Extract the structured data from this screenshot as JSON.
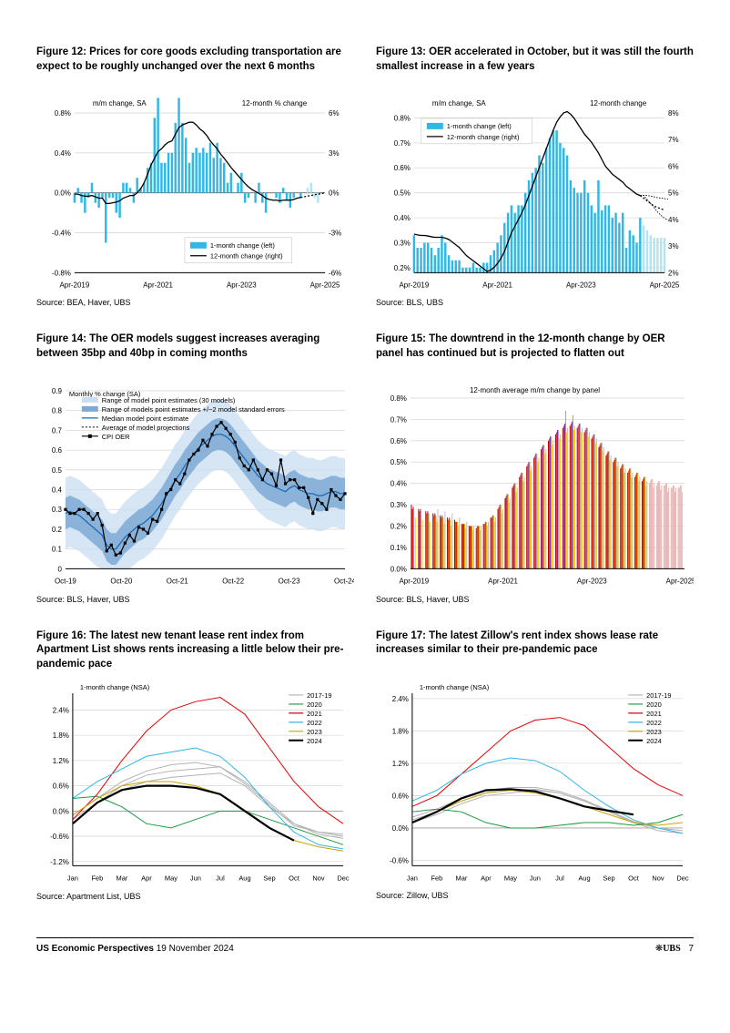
{
  "footer": {
    "title": "US Economic Perspectives",
    "date": "19 November 2024",
    "logo": "UBS",
    "page": "7",
    "keys_prefix": "❋"
  },
  "fig12": {
    "title": "Figure 12: Prices for core goods excluding transportation are expect to be roughly unchanged over the next 6 months",
    "source": "Source: BEA, Haver, UBS",
    "left_title": "m/m change, SA",
    "right_title": "12-month % change",
    "legend1": "1-month change (left)",
    "legend2": "12-month change (right)",
    "x_labels": [
      "Apr-2019",
      "Apr-2021",
      "Apr-2023",
      "Apr-2025"
    ],
    "y_left_ticks": [
      "-0.8%",
      "-0.4%",
      "0.0%",
      "0.4%",
      "0.8%"
    ],
    "y_right_ticks": [
      "-6%",
      "-3%",
      "0%",
      "3%",
      "6%"
    ],
    "bar_color": "#2eb8e6",
    "bar_fade_color": "#b3e4f2",
    "line_color": "#000000",
    "grid_color": "#d9d9d9",
    "bars": [
      -0.1,
      0.05,
      -0.1,
      -0.2,
      -0.05,
      0.1,
      -0.1,
      -0.15,
      -0.05,
      -0.5,
      -0.05,
      -0.05,
      -0.2,
      -0.25,
      0.1,
      0.1,
      0.05,
      -0.1,
      0.15,
      0.05,
      0.1,
      0.25,
      0.3,
      0.75,
      0.95,
      0.3,
      0.3,
      0.4,
      0.4,
      0.7,
      0.95,
      0.7,
      0.55,
      0.3,
      0.4,
      0.45,
      0.4,
      0.45,
      0.4,
      0.5,
      0.35,
      0.5,
      0.35,
      0.3,
      0.1,
      0.2,
      0.0,
      0.1,
      0.2,
      -0.1,
      -0.05,
      0.0,
      -0.1,
      0.1,
      -0.1,
      -0.2,
      0.0,
      0.0,
      -0.05,
      -0.1,
      0.05,
      -0.08,
      -0.15,
      -0.05,
      0.0,
      -0.05,
      0.0,
      0.05,
      0.1,
      -0.05,
      -0.1,
      0.0,
      0.0
    ],
    "bars_fade_from": 66,
    "line12": [
      -0.1,
      -0.1,
      -0.2,
      -0.25,
      -0.25,
      -0.2,
      -0.3,
      -0.4,
      -0.4,
      -0.8,
      -0.8,
      -0.75,
      -0.7,
      -0.6,
      -0.4,
      -0.3,
      -0.2,
      -0.2,
      0.0,
      0.3,
      0.75,
      1.4,
      2.1,
      2.6,
      3.1,
      3.3,
      3.6,
      3.8,
      3.9,
      4.4,
      4.9,
      5.1,
      5.2,
      5.3,
      5.3,
      5.1,
      4.8,
      4.6,
      4.3,
      3.9,
      3.6,
      3.3,
      2.9,
      2.6,
      2.25,
      1.9,
      1.6,
      1.3,
      1.0,
      0.7,
      0.45,
      0.25,
      0.1,
      -0.05,
      -0.2,
      -0.4,
      -0.5,
      -0.55,
      -0.55,
      -0.6,
      -0.55,
      -0.55,
      -0.55,
      -0.5,
      -0.4,
      -0.35,
      -0.3,
      -0.25,
      -0.2,
      -0.15,
      -0.1,
      -0.05,
      0.0
    ],
    "line12_dash_from": 66,
    "yl_min": -0.8,
    "yl_max": 0.8,
    "yr_min": -6,
    "yr_max": 6
  },
  "fig13": {
    "title": "Figure 13: OER accelerated in October, but it was still the fourth smallest increase in a few years",
    "source": "Source: BLS, UBS",
    "left_title": "m/m change, SA",
    "right_title": "12-month change",
    "legend1": "1-month change (left)",
    "legend2": "12-month change (right)",
    "x_labels": [
      "Apr-2019",
      "Apr-2021",
      "Apr-2023",
      "Apr-2025"
    ],
    "y_left_ticks": [
      "0.2%",
      "0.3%",
      "0.4%",
      "0.5%",
      "0.6%",
      "0.7%",
      "0.8%"
    ],
    "y_right_ticks": [
      "2%",
      "3%",
      "4%",
      "5%",
      "6%",
      "7%",
      "8%"
    ],
    "bar_color": "#2eb8e6",
    "bar_fade_color": "#b3e4f2",
    "line_color": "#000000",
    "grid_color": "#d9d9d9",
    "bars": [
      0.33,
      0.28,
      0.28,
      0.3,
      0.3,
      0.28,
      0.25,
      0.28,
      0.33,
      0.3,
      0.25,
      0.23,
      0.23,
      0.23,
      0.2,
      0.2,
      0.2,
      0.22,
      0.2,
      0.2,
      0.22,
      0.22,
      0.25,
      0.27,
      0.3,
      0.33,
      0.38,
      0.42,
      0.45,
      0.42,
      0.45,
      0.45,
      0.5,
      0.55,
      0.58,
      0.6,
      0.65,
      0.62,
      0.68,
      0.72,
      0.75,
      0.75,
      0.7,
      0.68,
      0.65,
      0.55,
      0.52,
      0.5,
      0.5,
      0.55,
      0.5,
      0.45,
      0.42,
      0.55,
      0.43,
      0.45,
      0.45,
      0.4,
      0.42,
      0.38,
      0.42,
      0.28,
      0.35,
      0.33,
      0.3,
      0.4,
      0.37,
      0.35,
      0.33,
      0.32,
      0.32,
      0.32,
      0.32
    ],
    "bars_fade_from": 66,
    "line12": [
      3.45,
      3.42,
      3.4,
      3.4,
      3.38,
      3.35,
      3.33,
      3.33,
      3.33,
      3.3,
      3.25,
      3.15,
      3.05,
      2.95,
      2.8,
      2.65,
      2.55,
      2.45,
      2.35,
      2.25,
      2.15,
      2.05,
      2.1,
      2.2,
      2.35,
      2.55,
      2.8,
      3.15,
      3.5,
      3.75,
      4.0,
      4.25,
      4.55,
      4.9,
      5.25,
      5.6,
      5.95,
      6.3,
      6.65,
      7.0,
      7.35,
      7.65,
      7.85,
      8.0,
      8.05,
      7.95,
      7.8,
      7.6,
      7.4,
      7.2,
      7.05,
      6.9,
      6.7,
      6.5,
      6.25,
      6.0,
      5.85,
      5.7,
      5.6,
      5.5,
      5.4,
      5.25,
      5.15,
      5.05,
      4.95,
      4.9,
      4.8,
      4.7,
      4.6,
      4.5,
      4.45,
      4.4,
      4.35
    ],
    "line12_dash_from": 66,
    "line12_lower": [
      4.9,
      4.75,
      4.6,
      4.45,
      4.28,
      4.15,
      4.05,
      3.98
    ],
    "line12_upper": [
      4.9,
      4.9,
      4.88,
      4.85,
      4.82,
      4.8,
      4.78,
      4.76
    ],
    "yl_min": 0.18,
    "yl_max": 0.82,
    "yr_min": 2,
    "yr_max": 8
  },
  "fig14": {
    "title": "Figure 14: The OER models suggest increases averaging between 35bp and 40bp in coming months",
    "source": "Source: BLS, Haver, UBS",
    "subtitle": "Monthly % change (SA)",
    "legend": [
      "Range of model point estimates (30 models)",
      "Range of models point estimates +/−2 model standard errors",
      "Median model point estimate",
      "Average of model projections",
      "CPI OER"
    ],
    "colors": {
      "light_band": "#c9def0",
      "dark_band": "#7ea9d4",
      "median": "#1f6ab3",
      "cpi_line": "#000000",
      "marker_fill": "#000000"
    },
    "x_labels": [
      "Oct-19",
      "Oct-20",
      "Oct-21",
      "Oct-22",
      "Oct-23",
      "Oct-24"
    ],
    "y_ticks": [
      "0",
      "0.1",
      "0.2",
      "0.3",
      "0.4",
      "0.5",
      "0.6",
      "0.7",
      "0.8",
      "0.9"
    ],
    "y_min": 0,
    "y_max": 0.9,
    "n": 62,
    "median": [
      0.28,
      0.29,
      0.28,
      0.27,
      0.25,
      0.23,
      0.21,
      0.19,
      0.17,
      0.12,
      0.1,
      0.1,
      0.13,
      0.16,
      0.18,
      0.2,
      0.22,
      0.23,
      0.25,
      0.27,
      0.3,
      0.33,
      0.37,
      0.41,
      0.45,
      0.48,
      0.52,
      0.55,
      0.58,
      0.61,
      0.63,
      0.65,
      0.67,
      0.68,
      0.68,
      0.67,
      0.65,
      0.62,
      0.59,
      0.56,
      0.53,
      0.5,
      0.47,
      0.45,
      0.43,
      0.42,
      0.41,
      0.4,
      0.39,
      0.41,
      0.42,
      0.4,
      0.39,
      0.38,
      0.38,
      0.37,
      0.37,
      0.38,
      0.39,
      0.39,
      0.38,
      0.38
    ],
    "cpi": [
      0.3,
      0.28,
      0.28,
      0.3,
      0.3,
      0.28,
      0.25,
      0.28,
      0.22,
      0.09,
      0.12,
      0.07,
      0.08,
      0.13,
      0.17,
      0.14,
      0.21,
      0.2,
      0.18,
      0.25,
      0.24,
      0.3,
      0.38,
      0.4,
      0.45,
      0.43,
      0.48,
      0.55,
      0.58,
      0.6,
      0.65,
      0.62,
      0.68,
      0.72,
      0.74,
      0.71,
      0.68,
      0.64,
      0.56,
      0.52,
      0.5,
      0.55,
      0.5,
      0.45,
      0.5,
      0.48,
      0.42,
      0.55,
      0.43,
      0.45,
      0.45,
      0.41,
      0.41,
      0.36,
      0.28,
      0.35,
      0.33,
      0.3,
      0.4,
      0.37,
      0.35,
      0.38
    ],
    "band_wide_hw": 0.18,
    "band_narrow_hw": 0.08
  },
  "fig15": {
    "title": "Figure 15: The downtrend in the 12-month change by OER panel has continued but is projected to flatten out",
    "source": "Source: BLS, Haver, UBS",
    "subtitle": "12-month average m/m change by panel",
    "x_labels": [
      "Apr-2019",
      "Apr-2021",
      "Apr-2023",
      "Apr-2025"
    ],
    "y_ticks": [
      "0.0%",
      "0.1%",
      "0.2%",
      "0.3%",
      "0.4%",
      "0.5%",
      "0.6%",
      "0.7%",
      "0.8%"
    ],
    "y_min": 0,
    "y_max": 0.8,
    "colors": [
      "#c00000",
      "#ff3300",
      "#7030a0",
      "#d4af00",
      "#ffcf00",
      "#c0c0c0"
    ],
    "fade_color": "#e0a0a0",
    "bars_per_group": 6,
    "groups": [
      [
        0.3,
        0.28,
        0.29,
        0.0,
        0.24,
        0.0
      ],
      [
        0.28,
        0.27,
        0.28,
        0.0,
        0.23,
        0.0
      ],
      [
        0.27,
        0.26,
        0.27,
        0.26,
        0.22,
        0.0
      ],
      [
        0.26,
        0.25,
        0.26,
        0.25,
        0.22,
        0.28
      ],
      [
        0.25,
        0.24,
        0.25,
        0.24,
        0.21,
        0.27
      ],
      [
        0.24,
        0.23,
        0.24,
        0.23,
        0.2,
        0.26
      ],
      [
        0.23,
        0.22,
        0.22,
        0.22,
        0.2,
        0.24
      ],
      [
        0.21,
        0.21,
        0.21,
        0.21,
        0.19,
        0.22
      ],
      [
        0.2,
        0.2,
        0.2,
        0.2,
        0.18,
        0.2
      ],
      [
        0.19,
        0.2,
        0.2,
        0.2,
        0.18,
        0.2
      ],
      [
        0.21,
        0.21,
        0.22,
        0.22,
        0.2,
        0.22
      ],
      [
        0.24,
        0.24,
        0.25,
        0.25,
        0.22,
        0.24
      ],
      [
        0.28,
        0.29,
        0.3,
        0.3,
        0.26,
        0.28
      ],
      [
        0.33,
        0.34,
        0.35,
        0.35,
        0.31,
        0.33
      ],
      [
        0.38,
        0.39,
        0.4,
        0.4,
        0.36,
        0.38
      ],
      [
        0.43,
        0.44,
        0.45,
        0.45,
        0.41,
        0.43
      ],
      [
        0.48,
        0.49,
        0.5,
        0.5,
        0.46,
        0.48
      ],
      [
        0.52,
        0.53,
        0.54,
        0.54,
        0.5,
        0.52
      ],
      [
        0.56,
        0.57,
        0.58,
        0.58,
        0.54,
        0.56
      ],
      [
        0.6,
        0.61,
        0.62,
        0.62,
        0.58,
        0.6
      ],
      [
        0.63,
        0.64,
        0.65,
        0.65,
        0.61,
        0.63
      ],
      [
        0.66,
        0.67,
        0.68,
        0.74,
        0.64,
        0.66
      ],
      [
        0.67,
        0.68,
        0.69,
        0.72,
        0.65,
        0.67
      ],
      [
        0.66,
        0.67,
        0.68,
        0.68,
        0.64,
        0.66
      ],
      [
        0.64,
        0.65,
        0.66,
        0.66,
        0.62,
        0.64
      ],
      [
        0.61,
        0.62,
        0.63,
        0.63,
        0.59,
        0.61
      ],
      [
        0.57,
        0.58,
        0.59,
        0.59,
        0.55,
        0.57
      ],
      [
        0.53,
        0.54,
        0.55,
        0.55,
        0.51,
        0.53
      ],
      [
        0.5,
        0.51,
        0.52,
        0.52,
        0.48,
        0.5
      ],
      [
        0.47,
        0.48,
        0.49,
        0.49,
        0.45,
        0.47
      ],
      [
        0.45,
        0.46,
        0.47,
        0.47,
        0.43,
        0.45
      ],
      [
        0.43,
        0.44,
        0.45,
        0.45,
        0.41,
        0.43
      ],
      [
        0.41,
        0.42,
        0.43,
        0.43,
        0.39,
        0.41
      ],
      [
        0.4,
        0.41,
        0.42,
        0.42,
        0.38,
        0.4
      ],
      [
        0.39,
        0.4,
        0.41,
        0.41,
        0.37,
        0.39
      ],
      [
        0.39,
        0.39,
        0.4,
        0.4,
        0.36,
        0.38
      ],
      [
        0.38,
        0.38,
        0.39,
        0.39,
        0.36,
        0.38
      ],
      [
        0.38,
        0.38,
        0.39,
        0.39,
        0.36,
        0.0
      ]
    ],
    "fade_from": 33
  },
  "fig16": {
    "title": "Figure 16: The latest new tenant lease rent index from Apartment List shows rents increasing a little below their pre-pandemic pace",
    "source": "Source: Apartment List, UBS",
    "subtitle": "1-month change (NSA)",
    "x_labels": [
      "Jan",
      "Feb",
      "Mar",
      "Apr",
      "May",
      "Jun",
      "Jul",
      "Aug",
      "Sep",
      "Oct",
      "Nov",
      "Dec"
    ],
    "y_ticks": [
      "-1.2%",
      "-0.6%",
      "0.0%",
      "0.6%",
      "1.2%",
      "1.8%",
      "2.4%"
    ],
    "y_min": -1.3,
    "y_max": 2.8,
    "series_labels": [
      "2017-19",
      "2020",
      "2021",
      "2022",
      "2023",
      "2024"
    ],
    "series_colors": [
      "#b3b3b3",
      "#1a9b3c",
      "#e60000",
      "#33b5e5",
      "#c9a400",
      "#000000"
    ],
    "line_widths": [
      1,
      1,
      1,
      1,
      1,
      2.2
    ],
    "series": {
      "2017_19_a": [
        -0.3,
        0.2,
        0.5,
        0.7,
        0.8,
        0.85,
        0.9,
        0.6,
        0.1,
        -0.3,
        -0.5,
        -0.6
      ],
      "2017_19_b": [
        -0.2,
        0.2,
        0.6,
        0.85,
        0.95,
        1.0,
        1.05,
        0.7,
        0.2,
        -0.3,
        -0.55,
        -0.65
      ],
      "2017_19_c": [
        -0.1,
        0.3,
        0.7,
        0.95,
        1.1,
        1.15,
        1.05,
        0.65,
        0.15,
        -0.35,
        -0.5,
        -0.55
      ],
      "2020": [
        0.3,
        0.35,
        0.1,
        -0.3,
        -0.4,
        -0.2,
        0.0,
        0.0,
        -0.2,
        -0.4,
        -0.6,
        -0.8
      ],
      "2021": [
        -0.2,
        0.4,
        1.2,
        1.9,
        2.4,
        2.6,
        2.7,
        2.3,
        1.5,
        0.7,
        0.1,
        -0.3
      ],
      "2022": [
        0.3,
        0.7,
        1.0,
        1.3,
        1.4,
        1.5,
        1.3,
        0.8,
        0.1,
        -0.5,
        -0.8,
        -0.9
      ],
      "2023": [
        -0.1,
        0.3,
        0.6,
        0.7,
        0.7,
        0.6,
        0.4,
        0.0,
        -0.4,
        -0.7,
        -0.85,
        -0.95
      ],
      "2024": [
        -0.3,
        0.2,
        0.5,
        0.6,
        0.6,
        0.55,
        0.4,
        0.0,
        -0.4,
        -0.7
      ]
    }
  },
  "fig17": {
    "title": "Figure 17: The latest Zillow's rent index shows lease rate increases similar to their pre-pandemic pace",
    "source": "Source: Zillow, UBS",
    "subtitle": "1-month change (NSA)",
    "x_labels": [
      "Jan",
      "Feb",
      "Mar",
      "Apr",
      "May",
      "Jun",
      "Jul",
      "Aug",
      "Sep",
      "Oct",
      "Nov",
      "Dec"
    ],
    "y_ticks": [
      "-0.6%",
      "0.0%",
      "0.6%",
      "1.2%",
      "1.8%",
      "2.4%"
    ],
    "y_min": -0.7,
    "y_max": 2.5,
    "series_labels": [
      "2017-19",
      "2020",
      "2021",
      "2022",
      "2023",
      "2024"
    ],
    "series_colors": [
      "#b3b3b3",
      "#1a9b3c",
      "#e60000",
      "#33b5e5",
      "#c9a400",
      "#000000"
    ],
    "line_widths": [
      1,
      1,
      1,
      1,
      1,
      2.2
    ],
    "series": {
      "2017_19_a": [
        0.1,
        0.25,
        0.45,
        0.6,
        0.65,
        0.7,
        0.65,
        0.5,
        0.3,
        0.1,
        -0.05,
        -0.1
      ],
      "2017_19_b": [
        0.15,
        0.3,
        0.5,
        0.65,
        0.7,
        0.72,
        0.65,
        0.5,
        0.3,
        0.1,
        0.0,
        -0.05
      ],
      "2017_19_c": [
        0.2,
        0.35,
        0.55,
        0.7,
        0.75,
        0.75,
        0.68,
        0.52,
        0.32,
        0.12,
        0.0,
        -0.1
      ],
      "2020": [
        0.3,
        0.35,
        0.3,
        0.1,
        0.0,
        0.0,
        0.05,
        0.1,
        0.1,
        0.05,
        0.1,
        0.25
      ],
      "2021": [
        0.4,
        0.6,
        1.0,
        1.4,
        1.8,
        2.0,
        2.05,
        1.9,
        1.5,
        1.1,
        0.8,
        0.6
      ],
      "2022": [
        0.5,
        0.7,
        1.0,
        1.2,
        1.3,
        1.25,
        1.05,
        0.7,
        0.4,
        0.15,
        0.0,
        -0.1
      ],
      "2023": [
        0.1,
        0.3,
        0.5,
        0.65,
        0.7,
        0.65,
        0.55,
        0.4,
        0.25,
        0.1,
        0.05,
        0.1
      ],
      "2024": [
        0.1,
        0.3,
        0.55,
        0.7,
        0.72,
        0.68,
        0.55,
        0.4,
        0.32,
        0.25
      ]
    }
  }
}
